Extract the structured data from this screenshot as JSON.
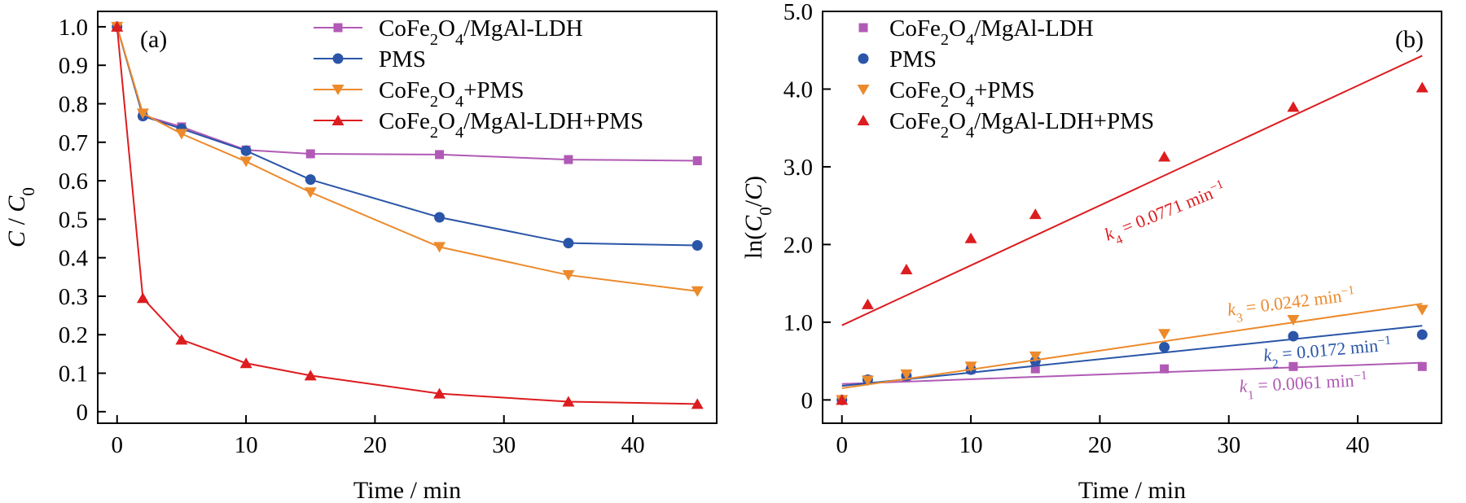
{
  "figure": {
    "panel_a_tag": "(a)",
    "panel_b_tag": "(b)"
  },
  "colors": {
    "ldh": "#b05ab5",
    "pms": "#2a55a8",
    "cofe_pms": "#ec8a2c",
    "ldh_pms": "#dd1c1f"
  },
  "chart_data": [
    {
      "type": "line",
      "panel": "(a)",
      "xlabel": "Time / min",
      "ylabel": "C / C0",
      "xlim": [
        -1.5,
        46.5
      ],
      "ylim": [
        -0.03,
        1.04
      ],
      "xticks": [
        0,
        10,
        20,
        30,
        40
      ],
      "yticks": [
        0,
        0.1,
        0.2,
        0.3,
        0.4,
        0.5,
        0.6,
        0.7,
        0.8,
        0.9,
        1.0
      ],
      "ytick_labels": [
        "0",
        "0.1",
        "0.2",
        "0.3",
        "0.4",
        "0.5",
        "0.6",
        "0.7",
        "0.8",
        "0.9",
        "1.0"
      ],
      "legend_position": "top-right",
      "x": [
        0,
        2,
        5,
        10,
        15,
        25,
        35,
        45
      ],
      "series": [
        {
          "name": "CoFe2O4/MgAl-LDH",
          "color_key": "ldh",
          "marker": "square",
          "values": [
            1.0,
            0.77,
            0.74,
            0.68,
            0.67,
            0.668,
            0.655,
            0.652
          ]
        },
        {
          "name": "PMS",
          "color_key": "pms",
          "marker": "circle",
          "values": [
            1.0,
            0.768,
            0.735,
            0.678,
            0.603,
            0.505,
            0.438,
            0.432
          ]
        },
        {
          "name": "CoFe2O4+PMS",
          "color_key": "cofe_pms",
          "marker": "triangle-down",
          "values": [
            1.0,
            0.775,
            0.722,
            0.65,
            0.57,
            0.428,
            0.355,
            0.313
          ]
        },
        {
          "name": "CoFe2O4/MgAl-LDH+PMS",
          "color_key": "ldh_pms",
          "marker": "triangle-up",
          "values": [
            1.0,
            0.295,
            0.187,
            0.126,
            0.094,
            0.047,
            0.026,
            0.02
          ]
        }
      ]
    },
    {
      "type": "scatter",
      "panel": "(b)",
      "xlabel": "Time / min",
      "ylabel": "ln(C0/C)",
      "xlim": [
        -1.5,
        46.5
      ],
      "ylim": [
        -0.3,
        5.0
      ],
      "xticks": [
        0,
        10,
        20,
        30,
        40
      ],
      "yticks": [
        0,
        1,
        2,
        3,
        4,
        5
      ],
      "ytick_labels": [
        "0",
        "1.0",
        "2.0",
        "3.0",
        "4.0",
        "5.0"
      ],
      "legend_position": "top-left",
      "x": [
        0,
        2,
        5,
        10,
        15,
        25,
        35,
        45
      ],
      "series": [
        {
          "name": "CoFe2O4/MgAl-LDH",
          "color_key": "ldh",
          "marker": "square",
          "values": [
            0,
            0.26,
            0.3,
            0.39,
            0.4,
            0.4,
            0.43,
            0.43
          ],
          "fit": [
            0.205,
            0.4795
          ],
          "k_label": "k1 = 0.0061 min−1"
        },
        {
          "name": "PMS",
          "color_key": "pms",
          "marker": "circle",
          "values": [
            0,
            0.26,
            0.31,
            0.39,
            0.5,
            0.68,
            0.82,
            0.84
          ],
          "fit": [
            0.18,
            0.954
          ],
          "k_label": "k2 = 0.0172 min−1"
        },
        {
          "name": "CoFe2O4+PMS",
          "color_key": "cofe_pms",
          "marker": "triangle-down",
          "values": [
            0,
            0.25,
            0.33,
            0.43,
            0.56,
            0.85,
            1.03,
            1.16
          ],
          "fit": [
            0.15,
            1.239
          ],
          "k_label": "k3 = 0.0242 min−1"
        },
        {
          "name": "CoFe2O4/MgAl-LDH+PMS",
          "color_key": "ldh_pms",
          "marker": "triangle-up",
          "values": [
            0,
            1.23,
            1.68,
            2.08,
            2.39,
            3.13,
            3.77,
            4.02
          ],
          "fit": [
            0.96,
            4.43
          ],
          "k_label": "k4 = 0.0771 min−1"
        }
      ]
    }
  ]
}
